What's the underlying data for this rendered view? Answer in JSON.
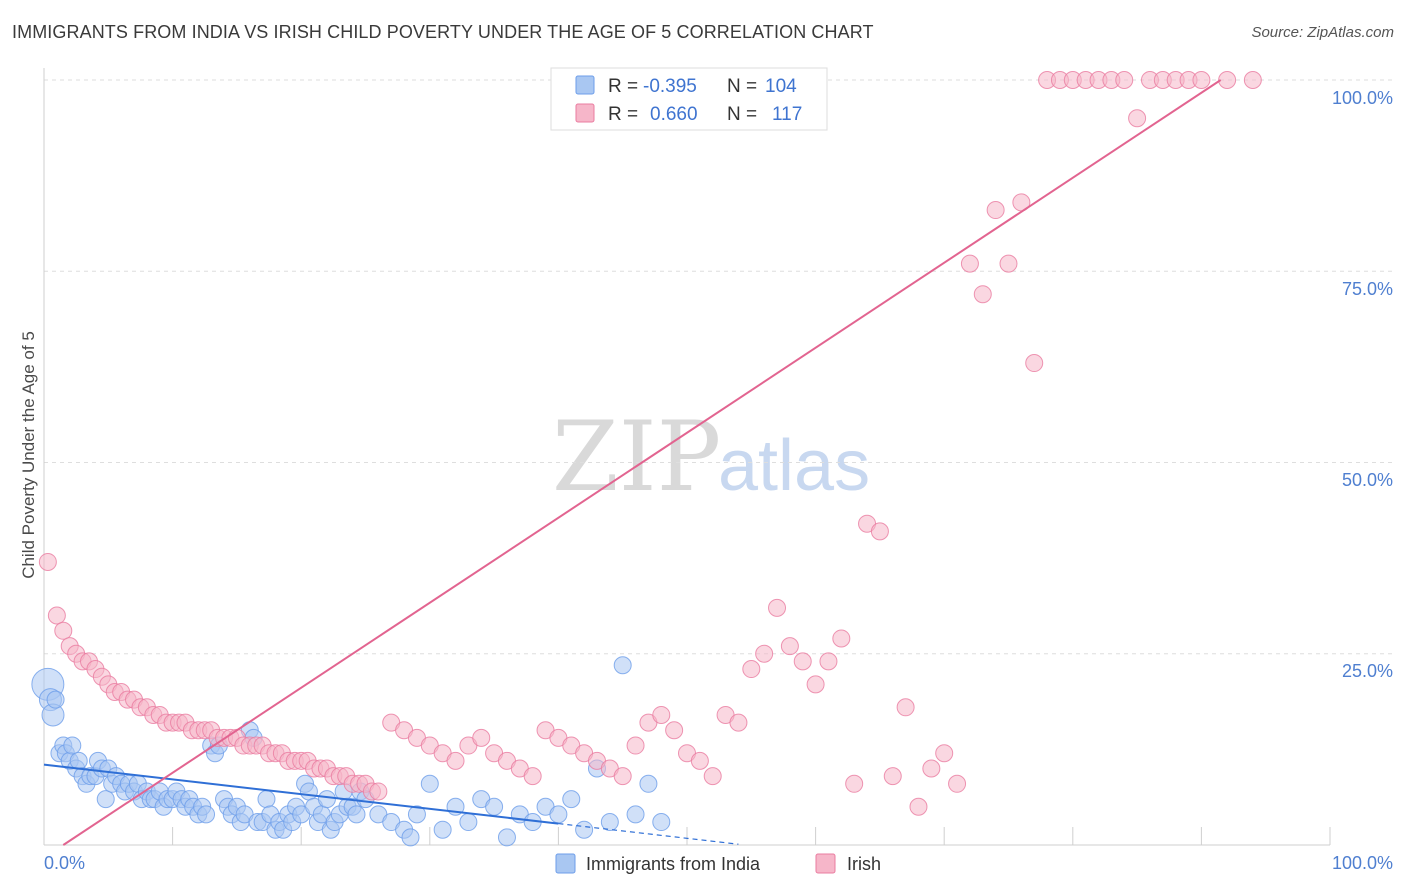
{
  "title": "IMMIGRANTS FROM INDIA VS IRISH CHILD POVERTY UNDER THE AGE OF 5 CORRELATION CHART",
  "source": "Source: ZipAtlas.com",
  "watermark": {
    "zip": "ZIP",
    "atlas": "atlas"
  },
  "legend": {
    "rows": [
      {
        "r_label": "R =",
        "r_value": "-0.395",
        "n_label": "N =",
        "n_value": "104",
        "color": "#a9c7f2"
      },
      {
        "r_label": "R =",
        "r_value": "0.660",
        "n_label": "N =",
        "n_value": "117",
        "color": "#f6b6c9"
      }
    ]
  },
  "chart_data": {
    "type": "scatter",
    "ylabel": "Child Poverty Under the Age of 5",
    "xlabel": "",
    "x_tick_labels": [
      "0.0%",
      "100.0%"
    ],
    "y_tick_labels": [
      "100.0%",
      "75.0%",
      "50.0%",
      "25.0%"
    ],
    "xlim": [
      0,
      100
    ],
    "ylim": [
      0,
      100
    ],
    "grid": true,
    "legend_placement": "top-center",
    "series": [
      {
        "name": "Immigrants from India",
        "color": "#6d9eea",
        "fill": "#a9c7f2",
        "trend": {
          "x0": 0,
          "y0": 10.5,
          "x1": 40,
          "y1": 2.8,
          "dashed_to_x": 54
        },
        "points": [
          [
            0.3,
            21
          ],
          [
            0.5,
            19
          ],
          [
            0.7,
            17
          ],
          [
            0.9,
            19
          ],
          [
            1.2,
            12
          ],
          [
            1.5,
            13
          ],
          [
            1.7,
            12
          ],
          [
            2,
            11
          ],
          [
            2.2,
            13
          ],
          [
            2.5,
            10
          ],
          [
            2.7,
            11
          ],
          [
            3,
            9
          ],
          [
            3.3,
            8
          ],
          [
            3.6,
            9
          ],
          [
            4,
            9
          ],
          [
            4.2,
            11
          ],
          [
            4.5,
            10
          ],
          [
            4.8,
            6
          ],
          [
            5,
            10
          ],
          [
            5.3,
            8
          ],
          [
            5.6,
            9
          ],
          [
            6,
            8
          ],
          [
            6.3,
            7
          ],
          [
            6.6,
            8
          ],
          [
            7,
            7
          ],
          [
            7.3,
            8
          ],
          [
            7.6,
            6
          ],
          [
            8,
            7
          ],
          [
            8.3,
            6
          ],
          [
            8.6,
            6
          ],
          [
            9,
            7
          ],
          [
            9.3,
            5
          ],
          [
            9.6,
            6
          ],
          [
            10,
            6
          ],
          [
            10.3,
            7
          ],
          [
            10.7,
            6
          ],
          [
            11,
            5
          ],
          [
            11.3,
            6
          ],
          [
            11.6,
            5
          ],
          [
            12,
            4
          ],
          [
            12.3,
            5
          ],
          [
            12.6,
            4
          ],
          [
            13,
            13
          ],
          [
            13.3,
            12
          ],
          [
            13.6,
            13
          ],
          [
            14,
            6
          ],
          [
            14.3,
            5
          ],
          [
            14.6,
            4
          ],
          [
            15,
            5
          ],
          [
            15.3,
            3
          ],
          [
            15.6,
            4
          ],
          [
            16,
            15
          ],
          [
            16.3,
            14
          ],
          [
            16.6,
            3
          ],
          [
            17,
            3
          ],
          [
            17.3,
            6
          ],
          [
            17.6,
            4
          ],
          [
            18,
            2
          ],
          [
            18.3,
            3
          ],
          [
            18.6,
            2
          ],
          [
            19,
            4
          ],
          [
            19.3,
            3
          ],
          [
            19.6,
            5
          ],
          [
            20,
            4
          ],
          [
            20.3,
            8
          ],
          [
            20.6,
            7
          ],
          [
            21,
            5
          ],
          [
            21.3,
            3
          ],
          [
            21.6,
            4
          ],
          [
            22,
            6
          ],
          [
            22.3,
            2
          ],
          [
            22.6,
            3
          ],
          [
            23,
            4
          ],
          [
            23.3,
            7
          ],
          [
            23.6,
            5
          ],
          [
            24,
            5
          ],
          [
            24.3,
            4
          ],
          [
            24.6,
            7
          ],
          [
            25,
            6
          ],
          [
            26,
            4
          ],
          [
            27,
            3
          ],
          [
            28,
            2
          ],
          [
            28.5,
            1
          ],
          [
            29,
            4
          ],
          [
            30,
            8
          ],
          [
            31,
            2
          ],
          [
            32,
            5
          ],
          [
            33,
            3
          ],
          [
            34,
            6
          ],
          [
            35,
            5
          ],
          [
            36,
            1
          ],
          [
            37,
            4
          ],
          [
            38,
            3
          ],
          [
            39,
            5
          ],
          [
            40,
            4
          ],
          [
            41,
            6
          ],
          [
            42,
            2
          ],
          [
            43,
            10
          ],
          [
            44,
            3
          ],
          [
            45,
            23.5
          ],
          [
            46,
            4
          ],
          [
            47,
            8
          ],
          [
            48,
            3
          ]
        ]
      },
      {
        "name": "Irish",
        "color": "#ea7ca0",
        "fill": "#f6b6c9",
        "trend": {
          "x0": 1.5,
          "y0": 0,
          "x1": 91.5,
          "y1": 100
        },
        "points": [
          [
            0.3,
            37
          ],
          [
            1,
            30
          ],
          [
            1.5,
            28
          ],
          [
            2,
            26
          ],
          [
            2.5,
            25
          ],
          [
            3,
            24
          ],
          [
            3.5,
            24
          ],
          [
            4,
            23
          ],
          [
            4.5,
            22
          ],
          [
            5,
            21
          ],
          [
            5.5,
            20
          ],
          [
            6,
            20
          ],
          [
            6.5,
            19
          ],
          [
            7,
            19
          ],
          [
            7.5,
            18
          ],
          [
            8,
            18
          ],
          [
            8.5,
            17
          ],
          [
            9,
            17
          ],
          [
            9.5,
            16
          ],
          [
            10,
            16
          ],
          [
            10.5,
            16
          ],
          [
            11,
            16
          ],
          [
            11.5,
            15
          ],
          [
            12,
            15
          ],
          [
            12.5,
            15
          ],
          [
            13,
            15
          ],
          [
            13.5,
            14
          ],
          [
            14,
            14
          ],
          [
            14.5,
            14
          ],
          [
            15,
            14
          ],
          [
            15.5,
            13
          ],
          [
            16,
            13
          ],
          [
            16.5,
            13
          ],
          [
            17,
            13
          ],
          [
            17.5,
            12
          ],
          [
            18,
            12
          ],
          [
            18.5,
            12
          ],
          [
            19,
            11
          ],
          [
            19.5,
            11
          ],
          [
            20,
            11
          ],
          [
            20.5,
            11
          ],
          [
            21,
            10
          ],
          [
            21.5,
            10
          ],
          [
            22,
            10
          ],
          [
            22.5,
            9
          ],
          [
            23,
            9
          ],
          [
            23.5,
            9
          ],
          [
            24,
            8
          ],
          [
            24.5,
            8
          ],
          [
            25,
            8
          ],
          [
            25.5,
            7
          ],
          [
            26,
            7
          ],
          [
            27,
            16
          ],
          [
            28,
            15
          ],
          [
            29,
            14
          ],
          [
            30,
            13
          ],
          [
            31,
            12
          ],
          [
            32,
            11
          ],
          [
            33,
            13
          ],
          [
            34,
            14
          ],
          [
            35,
            12
          ],
          [
            36,
            11
          ],
          [
            37,
            10
          ],
          [
            38,
            9
          ],
          [
            39,
            15
          ],
          [
            40,
            14
          ],
          [
            41,
            13
          ],
          [
            42,
            12
          ],
          [
            43,
            11
          ],
          [
            44,
            10
          ],
          [
            45,
            9
          ],
          [
            46,
            13
          ],
          [
            47,
            16
          ],
          [
            48,
            17
          ],
          [
            49,
            15
          ],
          [
            50,
            12
          ],
          [
            51,
            11
          ],
          [
            52,
            9
          ],
          [
            53,
            17
          ],
          [
            54,
            16
          ],
          [
            55,
            23
          ],
          [
            56,
            25
          ],
          [
            57,
            31
          ],
          [
            58,
            26
          ],
          [
            59,
            24
          ],
          [
            60,
            21
          ],
          [
            61,
            24
          ],
          [
            62,
            27
          ],
          [
            63,
            8
          ],
          [
            64,
            42
          ],
          [
            65,
            41
          ],
          [
            66,
            9
          ],
          [
            67,
            18
          ],
          [
            68,
            5
          ],
          [
            69,
            10
          ],
          [
            70,
            12
          ],
          [
            71,
            8
          ],
          [
            72,
            76
          ],
          [
            73,
            72
          ],
          [
            74,
            83
          ],
          [
            75,
            76
          ],
          [
            76,
            84
          ],
          [
            77,
            63
          ],
          [
            78,
            100
          ],
          [
            79,
            100
          ],
          [
            80,
            100
          ],
          [
            81,
            100
          ],
          [
            82,
            100
          ],
          [
            83,
            100
          ],
          [
            84,
            100
          ],
          [
            85,
            95
          ],
          [
            86,
            100
          ],
          [
            87,
            100
          ],
          [
            88,
            100
          ],
          [
            89,
            100
          ],
          [
            90,
            100
          ],
          [
            92,
            100
          ],
          [
            94,
            100
          ]
        ]
      }
    ]
  },
  "bottom_legend": [
    "Immigrants from India",
    "Irish"
  ]
}
